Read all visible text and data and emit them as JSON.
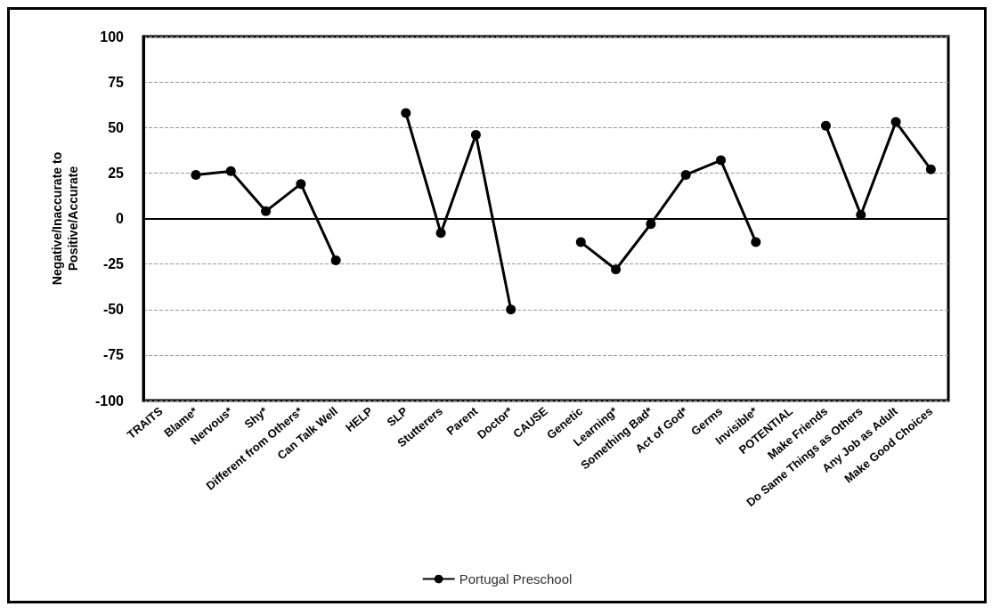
{
  "chart_data": {
    "type": "line",
    "ylabel": "Negative/Inaccurate to\nPositive/Accurate",
    "categories": [
      "TRAITS",
      "Blame*",
      "Nervous*",
      "Shy*",
      "Different from Others*",
      "Can Talk Well",
      "HELP",
      "SLP",
      "Stutterers",
      "Parent",
      "Doctor*",
      "CAUSE",
      "Genetic",
      "Learning*",
      "Something Bad*",
      "Act of God*",
      "Germs",
      "Invisible*",
      "POTENTIAL",
      "Make Friends",
      "Do Same Things as Others",
      "Any Job as Adult",
      "Make Good Choices"
    ],
    "series": [
      {
        "name": "Portugal Preschool",
        "color": "#000000",
        "values": [
          null,
          24,
          26,
          4,
          19,
          -23,
          null,
          58,
          -8,
          46,
          -50,
          null,
          -13,
          -28,
          -3,
          24,
          32,
          -13,
          null,
          51,
          2,
          53,
          27
        ]
      }
    ],
    "ylim": [
      -100,
      100
    ],
    "yticks": [
      -100,
      -75,
      -50,
      -25,
      0,
      25,
      50,
      75,
      100
    ],
    "grid": "y",
    "legend": "bottom",
    "marker": "circle",
    "line_style": "solid"
  }
}
